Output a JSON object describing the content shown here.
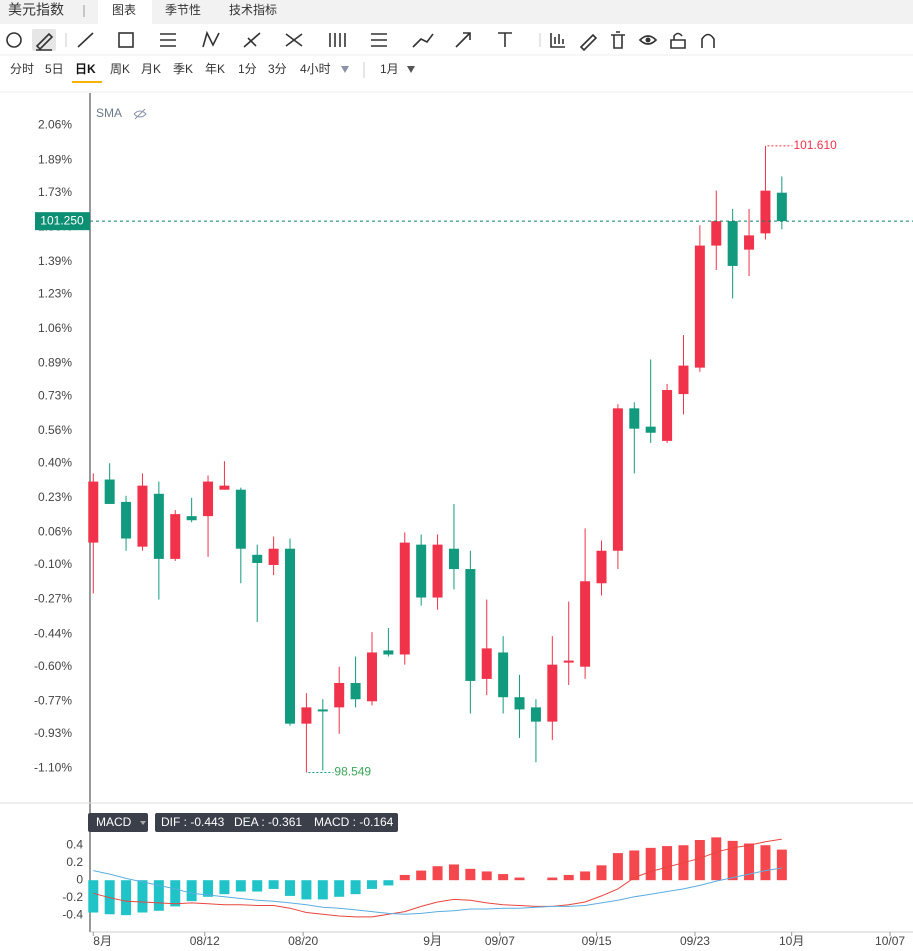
{
  "header": {
    "title": "美元指数",
    "tabs": [
      "图表",
      "季节性",
      "技术指标"
    ]
  },
  "periods": [
    "分时",
    "5日",
    "日K",
    "周K",
    "月K",
    "季K",
    "年K",
    "1分",
    "3分",
    "4小时"
  ],
  "selected_period": "日K",
  "range": "1月",
  "chart_data": [
    {
      "type": "candlestick",
      "indicator": "SMA",
      "up_color": "#f0324a",
      "down_color": "#119a7e",
      "last_label": "101.250",
      "high_label": "101.610",
      "low_label": "98.549",
      "xlim": [
        -0.2,
        50
      ],
      "ylim": [
        -1.27,
        2.22
      ],
      "yticks": [
        {
          "value": 2.06,
          "label": "2.06%"
        },
        {
          "value": 1.89,
          "label": "1.89%"
        },
        {
          "value": 1.73,
          "label": "1.73%"
        },
        {
          "value": 1.56,
          "label": "1.56%"
        },
        {
          "value": 1.39,
          "label": "1.39%"
        },
        {
          "value": 1.23,
          "label": "1.23%"
        },
        {
          "value": 1.06,
          "label": "1.06%"
        },
        {
          "value": 0.89,
          "label": "0.89%"
        },
        {
          "value": 0.73,
          "label": "0.73%"
        },
        {
          "value": 0.56,
          "label": "0.56%"
        },
        {
          "value": 0.4,
          "label": "0.40%"
        },
        {
          "value": 0.23,
          "label": "0.23%"
        },
        {
          "value": 0.06,
          "label": "0.06%"
        },
        {
          "value": -0.1,
          "label": "-0.10%"
        },
        {
          "value": -0.27,
          "label": "-0.27%"
        },
        {
          "value": -0.44,
          "label": "-0.44%"
        },
        {
          "value": -0.6,
          "label": "-0.60%"
        },
        {
          "value": -0.77,
          "label": "-0.77%"
        },
        {
          "value": -0.93,
          "label": "-0.93%"
        },
        {
          "value": -1.1,
          "label": "-1.10%"
        }
      ],
      "ohlc": [
        [
          0.01,
          0.35,
          -0.24,
          0.31
        ],
        [
          0.32,
          0.4,
          0.2,
          0.2
        ],
        [
          0.21,
          0.24,
          -0.03,
          0.03
        ],
        [
          -0.01,
          0.35,
          -0.03,
          0.29
        ],
        [
          0.25,
          0.31,
          -0.27,
          -0.07
        ],
        [
          -0.07,
          0.17,
          -0.08,
          0.15
        ],
        [
          0.14,
          0.23,
          0.11,
          0.12
        ],
        [
          0.14,
          0.34,
          -0.06,
          0.31
        ],
        [
          0.27,
          0.41,
          0.27,
          0.29
        ],
        [
          0.27,
          0.28,
          -0.19,
          -0.02
        ],
        [
          -0.05,
          0.0,
          -0.38,
          -0.09
        ],
        [
          -0.1,
          0.04,
          -0.15,
          -0.02
        ],
        [
          -0.02,
          0.03,
          -0.89,
          -0.88
        ],
        [
          -0.88,
          -0.73,
          -1.12,
          -0.8
        ],
        [
          -0.81,
          -0.76,
          -1.11,
          -0.82
        ],
        [
          -0.8,
          -0.6,
          -0.93,
          -0.68
        ],
        [
          -0.68,
          -0.55,
          -0.8,
          -0.76
        ],
        [
          -0.77,
          -0.43,
          -0.79,
          -0.53
        ],
        [
          -0.52,
          -0.41,
          -0.55,
          -0.54
        ],
        [
          -0.54,
          0.06,
          -0.59,
          0.01
        ],
        [
          0.0,
          0.05,
          -0.3,
          -0.26
        ],
        [
          -0.26,
          0.05,
          -0.32,
          0.0
        ],
        [
          -0.02,
          0.2,
          -0.22,
          -0.12
        ],
        [
          -0.12,
          -0.03,
          -0.83,
          -0.67
        ],
        [
          -0.66,
          -0.27,
          -0.74,
          -0.51
        ],
        [
          -0.53,
          -0.45,
          -0.83,
          -0.75
        ],
        [
          -0.75,
          -0.64,
          -0.95,
          -0.81
        ],
        [
          -0.8,
          -0.76,
          -1.07,
          -0.87
        ],
        [
          -0.87,
          -0.45,
          -0.96,
          -0.59
        ],
        [
          -0.58,
          -0.28,
          -0.69,
          -0.57
        ],
        [
          -0.6,
          0.08,
          -0.66,
          -0.18
        ],
        [
          -0.19,
          0.02,
          -0.25,
          -0.03
        ],
        [
          -0.03,
          0.69,
          -0.12,
          0.67
        ],
        [
          0.67,
          0.7,
          0.35,
          0.57
        ],
        [
          0.58,
          0.91,
          0.5,
          0.55
        ],
        [
          0.51,
          0.79,
          0.5,
          0.76
        ],
        [
          0.74,
          1.03,
          0.64,
          0.88
        ],
        [
          0.87,
          1.57,
          0.85,
          1.47
        ],
        [
          1.47,
          1.74,
          1.35,
          1.59
        ],
        [
          1.59,
          1.65,
          1.21,
          1.37
        ],
        [
          1.45,
          1.65,
          1.32,
          1.52
        ],
        [
          1.53,
          1.96,
          1.5,
          1.74
        ],
        [
          1.73,
          1.81,
          1.55,
          1.59
        ]
      ]
    },
    {
      "type": "macd",
      "name": "MACD",
      "readout": [
        "DIF : -0.443",
        "DEA : -0.361",
        "MACD : -0.164"
      ],
      "pos_color": "#f5474e",
      "neg_color": "#20c4c8",
      "xlim": [
        -0.2,
        50
      ],
      "ylim": [
        -0.57,
        0.54
      ],
      "yticks": [
        0.4,
        0.2,
        0,
        -0.2,
        -0.4
      ],
      "xticks": [
        {
          "value": 0,
          "label": "8月"
        },
        {
          "value": 6.8,
          "label": "08/12"
        },
        {
          "value": 12.8,
          "label": "08/20"
        },
        {
          "value": 20.7,
          "label": "9月"
        },
        {
          "value": 24.8,
          "label": "09/07"
        },
        {
          "value": 30.7,
          "label": "09/15"
        },
        {
          "value": 36.7,
          "label": "09/23"
        },
        {
          "value": 42.6,
          "label": "10月"
        },
        {
          "value": 48.6,
          "label": "10/07"
        }
      ],
      "bars": [
        -0.37,
        -0.39,
        -0.4,
        -0.37,
        -0.35,
        -0.3,
        -0.24,
        -0.19,
        -0.16,
        -0.13,
        -0.13,
        -0.1,
        -0.18,
        -0.22,
        -0.22,
        -0.19,
        -0.16,
        -0.1,
        -0.06,
        0.06,
        0.11,
        0.16,
        0.18,
        0.13,
        0.1,
        0.07,
        0.03,
        0.0,
        0.03,
        0.06,
        0.1,
        0.17,
        0.31,
        0.34,
        0.37,
        0.39,
        0.4,
        0.46,
        0.49,
        0.45,
        0.42,
        0.4,
        0.35
      ],
      "series": [
        {
          "name": "DIF",
          "color": "#e8463e",
          "values": [
            -0.15,
            -0.2,
            -0.24,
            -0.25,
            -0.26,
            -0.27,
            -0.26,
            -0.27,
            -0.28,
            -0.28,
            -0.29,
            -0.29,
            -0.32,
            -0.37,
            -0.39,
            -0.41,
            -0.42,
            -0.42,
            -0.39,
            -0.36,
            -0.3,
            -0.25,
            -0.22,
            -0.23,
            -0.26,
            -0.28,
            -0.29,
            -0.3,
            -0.3,
            -0.28,
            -0.25,
            -0.18,
            -0.1,
            0.03,
            0.1,
            0.15,
            0.2,
            0.25,
            0.32,
            0.37,
            0.4,
            0.44,
            0.47
          ]
        },
        {
          "name": "DEA",
          "color": "#5aaee0",
          "values": [
            0.11,
            0.07,
            0.02,
            -0.02,
            -0.06,
            -0.1,
            -0.15,
            -0.17,
            -0.19,
            -0.21,
            -0.23,
            -0.24,
            -0.26,
            -0.28,
            -0.31,
            -0.32,
            -0.34,
            -0.36,
            -0.38,
            -0.39,
            -0.38,
            -0.36,
            -0.35,
            -0.33,
            -0.33,
            -0.32,
            -0.32,
            -0.31,
            -0.3,
            -0.3,
            -0.29,
            -0.26,
            -0.23,
            -0.19,
            -0.16,
            -0.13,
            -0.1,
            -0.06,
            -0.01,
            0.03,
            0.07,
            0.11,
            0.14
          ]
        }
      ]
    }
  ]
}
